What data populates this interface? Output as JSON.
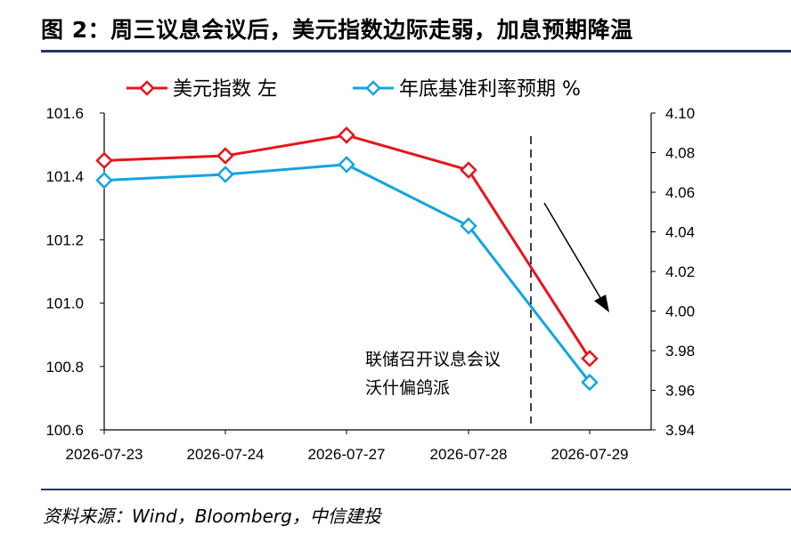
{
  "title": "图 2：周三议息会议后，美元指数边际走弱，加息预期降温",
  "source": "资料来源：Wind，Bloomberg，中信建投",
  "chart_data": {
    "type": "line",
    "categories": [
      "2026-07-23",
      "2026-07-24",
      "2026-07-27",
      "2026-07-28",
      "2026-07-29"
    ],
    "series": [
      {
        "name": "美元指数 左",
        "axis": "left",
        "color": "#e8141b",
        "values": [
          101.45,
          101.465,
          101.53,
          101.42,
          100.825
        ]
      },
      {
        "name": "年底基准利率预期 %",
        "axis": "right",
        "color": "#12a4e2",
        "values": [
          4.066,
          4.069,
          4.074,
          4.043,
          3.964
        ]
      }
    ],
    "y_left": {
      "min": 100.6,
      "max": 101.6,
      "ticks": [
        "101.6",
        "101.4",
        "101.2",
        "101.0",
        "100.8",
        "100.6"
      ]
    },
    "y_right": {
      "min": 3.94,
      "max": 4.1,
      "ticks": [
        "4.10",
        "4.08",
        "4.06",
        "4.04",
        "4.02",
        "4.00",
        "3.98",
        "3.96",
        "3.94"
      ]
    },
    "annotation": {
      "lines": [
        "联储召开议息会议",
        "沃什偏鸽派"
      ]
    },
    "legend_position": "top",
    "grid": false
  }
}
